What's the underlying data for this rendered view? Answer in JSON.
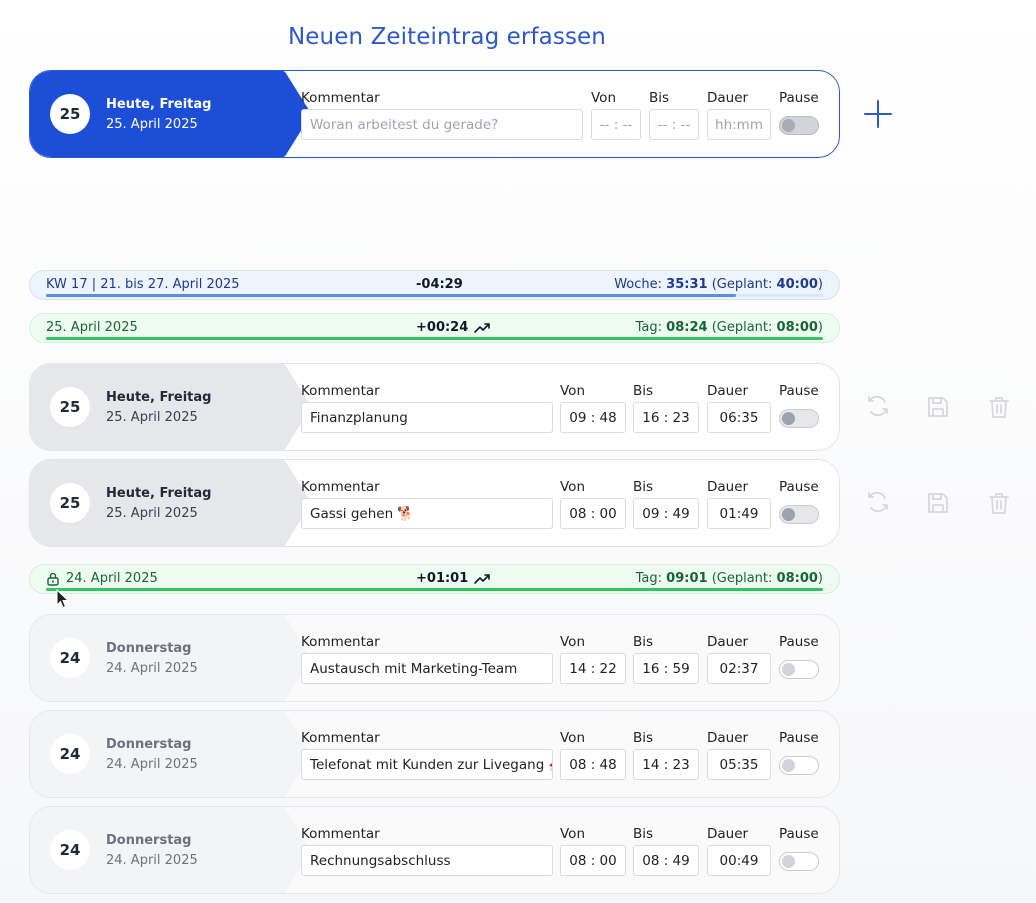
{
  "page_title": "Neuen Zeiteintrag erfassen",
  "labels": {
    "comment": "Kommentar",
    "from": "Von",
    "to": "Bis",
    "duration": "Dauer",
    "pause": "Pause"
  },
  "new_entry": {
    "day_number": "25",
    "day_name": "Heute, Freitag",
    "date": "25. April 2025",
    "comment_placeholder": "Woran arbeitest du gerade?",
    "from_placeholder": "-- : --",
    "to_placeholder": "-- : --",
    "duration_placeholder": "hh:mm",
    "pause": false
  },
  "week_summary": {
    "label": "KW 17 | 21. bis 27. April 2025",
    "delta": "-04:29",
    "week_label": "Woche:",
    "week_value": "35:31",
    "planned_label": "(Geplant:",
    "planned_value": "40:00",
    "close_paren": ")",
    "progress": 0.888
  },
  "day_groups": [
    {
      "label": "25. April 2025",
      "locked": false,
      "delta": "+00:24",
      "trend_icon": "trending-up-icon",
      "day_label": "Tag:",
      "day_value": "08:24",
      "planned_label": "(Geplant:",
      "planned_value": "08:00",
      "close_paren": ")",
      "progress": 1.0,
      "entries": [
        {
          "day_number": "25",
          "day_name": "Heute, Freitag",
          "date": "25. April 2025",
          "comment": "Finanzplanung",
          "from": "09 : 48",
          "to": "16 : 23",
          "duration": "06:35",
          "pause": false
        },
        {
          "day_number": "25",
          "day_name": "Heute, Freitag",
          "date": "25. April 2025",
          "comment": "Gassi gehen 🐕",
          "from": "08 : 00",
          "to": "09 : 49",
          "duration": "01:49",
          "pause": false
        }
      ]
    },
    {
      "label": "24. April 2025",
      "locked": true,
      "delta": "+01:01",
      "trend_icon": "trending-up-icon",
      "day_label": "Tag:",
      "day_value": "09:01",
      "planned_label": "(Geplant:",
      "planned_value": "08:00",
      "close_paren": ")",
      "progress": 1.0,
      "entries": [
        {
          "day_number": "24",
          "day_name": "Donnerstag",
          "date": "24. April 2025",
          "comment": "Austausch mit Marketing-Team",
          "from": "14 : 22",
          "to": "16 : 59",
          "duration": "02:37",
          "pause": false
        },
        {
          "day_number": "24",
          "day_name": "Donnerstag",
          "date": "24. April 2025",
          "comment": "Telefonat mit Kunden zur Livegang 🚀",
          "from": "08 : 48",
          "to": "14 : 23",
          "duration": "05:35",
          "pause": false
        },
        {
          "day_number": "24",
          "day_name": "Donnerstag",
          "date": "24. April 2025",
          "comment": "Rechnungsabschluss",
          "from": "08 : 00",
          "to": "08 : 49",
          "duration": "00:49",
          "pause": false
        }
      ]
    }
  ],
  "colors": {
    "accent": "#1d4ed8",
    "title": "#2c58c9",
    "week_bar": "#5c8fe0",
    "day_bar": "#34c263"
  }
}
